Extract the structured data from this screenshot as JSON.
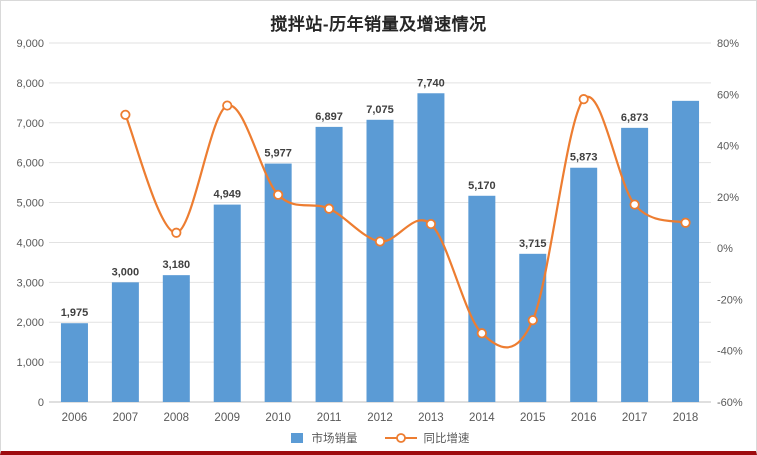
{
  "title": "搅拌站-历年销量及增速情况",
  "colors": {
    "bar": "#5B9BD5",
    "line": "#ED7D31",
    "grid": "#E2E2E2",
    "zero_axis": "#BFBFBF",
    "axis_text": "#595959",
    "bar_label_text": "#404040",
    "bottom_rule": "#9E0B0F"
  },
  "legend": {
    "items": [
      {
        "label": "市场销量",
        "swatch": "bar-swatch"
      },
      {
        "label": "同比增速",
        "swatch": "line-marker-swatch"
      }
    ]
  },
  "chart_data": {
    "type": "bar+line",
    "title": "搅拌站-历年销量及增速情况",
    "categories": [
      "2006",
      "2007",
      "2008",
      "2009",
      "2010",
      "2011",
      "2012",
      "2013",
      "2014",
      "2015",
      "2016",
      "2017",
      "2018"
    ],
    "series": [
      {
        "name": "市场销量",
        "type": "bar",
        "axis": "left",
        "values": [
          1975,
          3000,
          3180,
          4949,
          5977,
          6897,
          7075,
          7740,
          5170,
          3715,
          5873,
          6873,
          7550
        ],
        "labels": [
          "1,975",
          "3,000",
          "3,180",
          "4,949",
          "5,977",
          "6,897",
          "7,075",
          "7,740",
          "5,170",
          "3,715",
          "5,873",
          "6,873",
          ""
        ]
      },
      {
        "name": "同比增速",
        "type": "line",
        "axis": "right",
        "values": [
          null,
          52,
          6,
          55.6,
          20.8,
          15.4,
          2.6,
          9.4,
          -33.2,
          -28.1,
          58.1,
          17.0,
          9.9
        ]
      }
    ],
    "left_axis": {
      "min": 0,
      "max": 9000,
      "step": 1000,
      "tick_labels": [
        "0",
        "1,000",
        "2,000",
        "3,000",
        "4,000",
        "5,000",
        "6,000",
        "7,000",
        "8,000",
        "9,000"
      ]
    },
    "right_axis": {
      "min": -60,
      "max": 80,
      "step": 20,
      "tick_labels": [
        "-60%",
        "-40%",
        "-20%",
        "0%",
        "20%",
        "40%",
        "60%",
        "80%"
      ]
    },
    "grid": true,
    "legend_position": "bottom"
  }
}
